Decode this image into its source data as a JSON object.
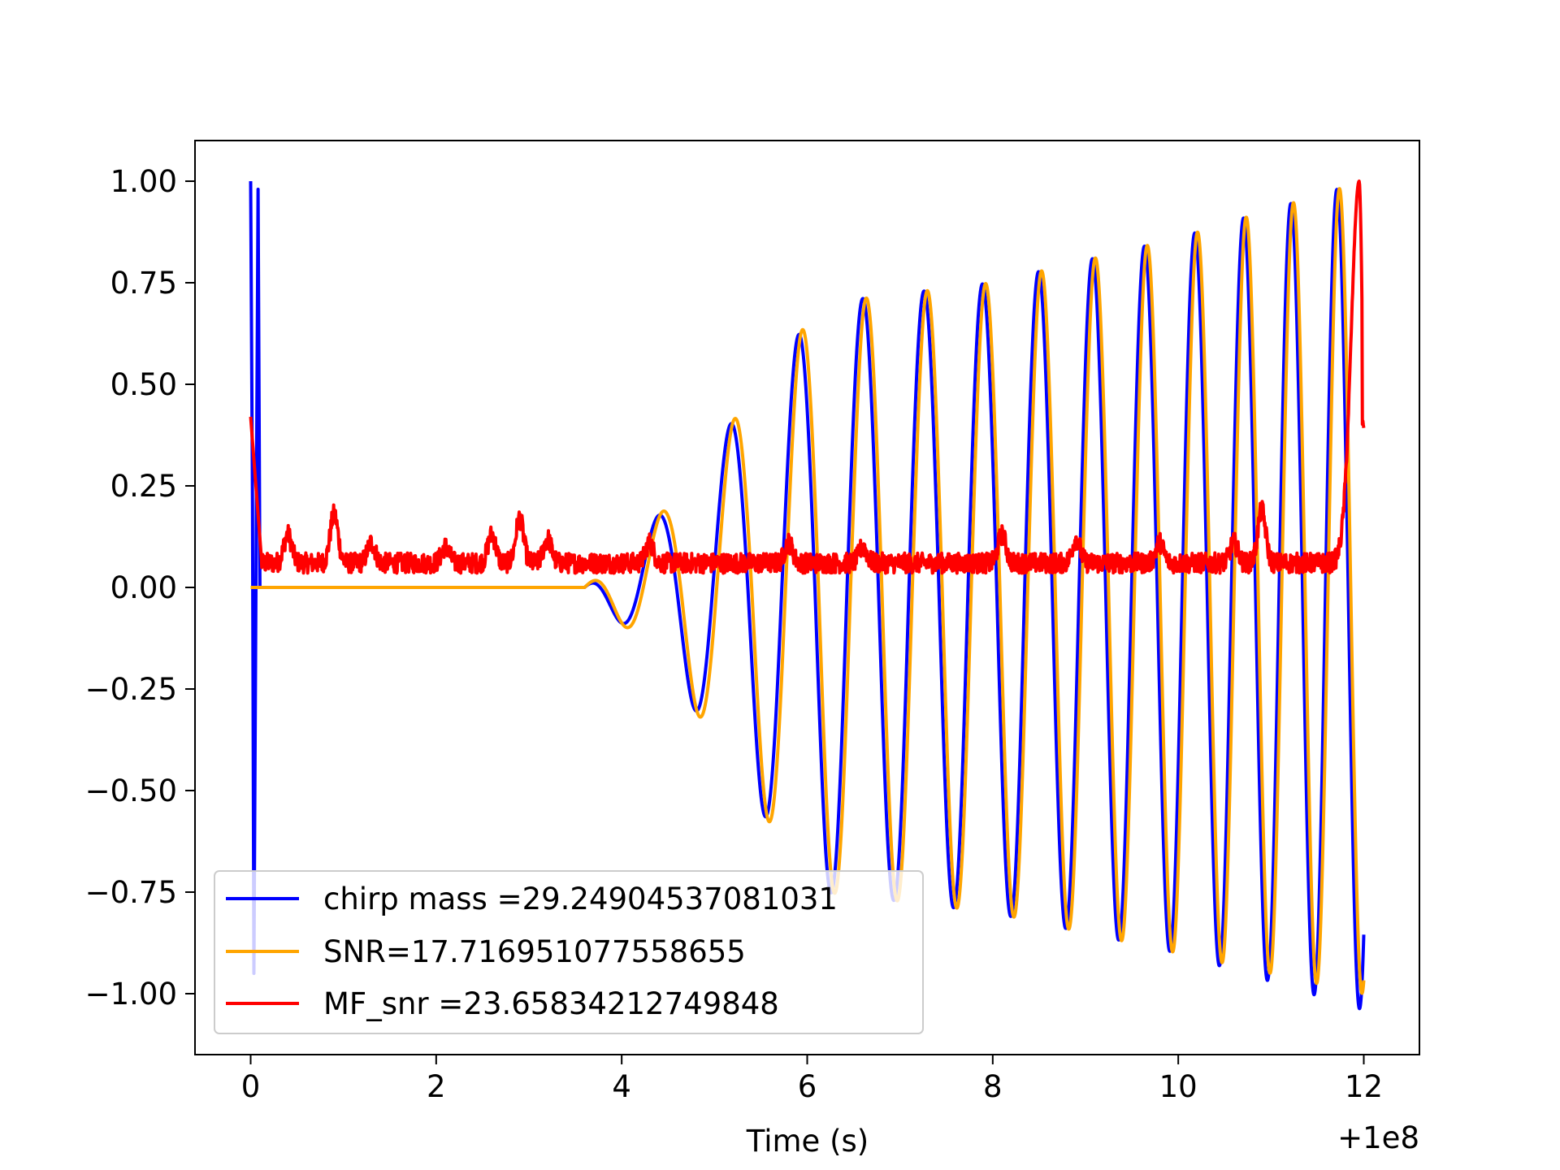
{
  "chart_data": {
    "type": "line",
    "title": "",
    "xlabel": "Time (s)",
    "ylabel": "",
    "x_offset_label": "+1e8",
    "xlim": [
      -0.6,
      12.6
    ],
    "ylim": [
      -1.15,
      1.1
    ],
    "xticks": [
      0,
      2,
      4,
      6,
      8,
      10,
      12
    ],
    "xtick_labels": [
      "0",
      "2",
      "4",
      "6",
      "8",
      "10",
      "12"
    ],
    "yticks": [
      1.0,
      0.75,
      0.5,
      0.25,
      0.0,
      -0.25,
      -0.5,
      -0.75,
      -1.0
    ],
    "ytick_labels": [
      "1.00",
      "0.75",
      "0.50",
      "0.25",
      "0.00",
      "−0.25",
      "−0.50",
      "−0.75",
      "−1.00"
    ],
    "grid": false,
    "legend_position": "lower-left",
    "series": [
      {
        "name": "chirp mass =29.24904537081031",
        "color": "#0000ff",
        "kind": "chirp-template",
        "x_start": 0.0,
        "x_end": 12.0,
        "spike_x": [
          0.0,
          0.08
        ],
        "spike_max": 1.0,
        "spike_min": -0.95,
        "onset_x": 3.6,
        "envelope": [
          [
            3.6,
            0.0
          ],
          [
            4.5,
            0.2
          ],
          [
            5.5,
            0.5
          ],
          [
            6.0,
            0.65
          ],
          [
            6.2,
            0.7
          ],
          [
            8.0,
            0.75
          ],
          [
            10.0,
            0.86
          ],
          [
            12.0,
            1.0
          ]
        ],
        "envelope_neg": [
          [
            3.6,
            0.0
          ],
          [
            4.5,
            -0.2
          ],
          [
            5.5,
            -0.55
          ],
          [
            6.0,
            -0.7
          ],
          [
            6.2,
            -0.75
          ],
          [
            8.0,
            -0.8
          ],
          [
            10.0,
            -0.9
          ],
          [
            12.0,
            -1.04
          ]
        ]
      },
      {
        "name": "SNR=17.716951077558655",
        "color": "#ffa500",
        "kind": "chirp-signal",
        "x_start": 0.0,
        "x_end": 12.0,
        "onset_x": 3.6,
        "envelope": [
          [
            3.6,
            0.0
          ],
          [
            4.5,
            0.2
          ],
          [
            5.5,
            0.5
          ],
          [
            6.0,
            0.65
          ],
          [
            6.2,
            0.7
          ],
          [
            8.0,
            0.75
          ],
          [
            10.0,
            0.86
          ],
          [
            12.0,
            1.0
          ]
        ],
        "envelope_neg": [
          [
            3.6,
            0.0
          ],
          [
            4.5,
            -0.2
          ],
          [
            5.5,
            -0.55
          ],
          [
            6.0,
            -0.7
          ],
          [
            6.2,
            -0.75
          ],
          [
            8.0,
            -0.8
          ],
          [
            10.0,
            -0.9
          ],
          [
            12.0,
            -1.0
          ]
        ]
      },
      {
        "name": "MF_snr =23.65834212749848",
        "color": "#ff0000",
        "kind": "matched-filter",
        "x_start": 0.0,
        "x_end": 12.0,
        "start_value": 0.42,
        "baseline": 0.06,
        "bumps": [
          [
            0.4,
            0.13
          ],
          [
            0.9,
            0.18
          ],
          [
            1.3,
            0.11
          ],
          [
            2.1,
            0.1
          ],
          [
            2.6,
            0.13
          ],
          [
            2.9,
            0.17
          ],
          [
            3.2,
            0.12
          ],
          [
            4.3,
            0.11
          ],
          [
            5.8,
            0.11
          ],
          [
            6.6,
            0.1
          ],
          [
            8.1,
            0.13
          ],
          [
            8.9,
            0.12
          ],
          [
            9.8,
            0.11
          ],
          [
            10.6,
            0.11
          ],
          [
            10.9,
            0.19
          ]
        ],
        "peak_x": 11.95,
        "peak_value": 1.0,
        "end_value": 0.4
      }
    ]
  }
}
